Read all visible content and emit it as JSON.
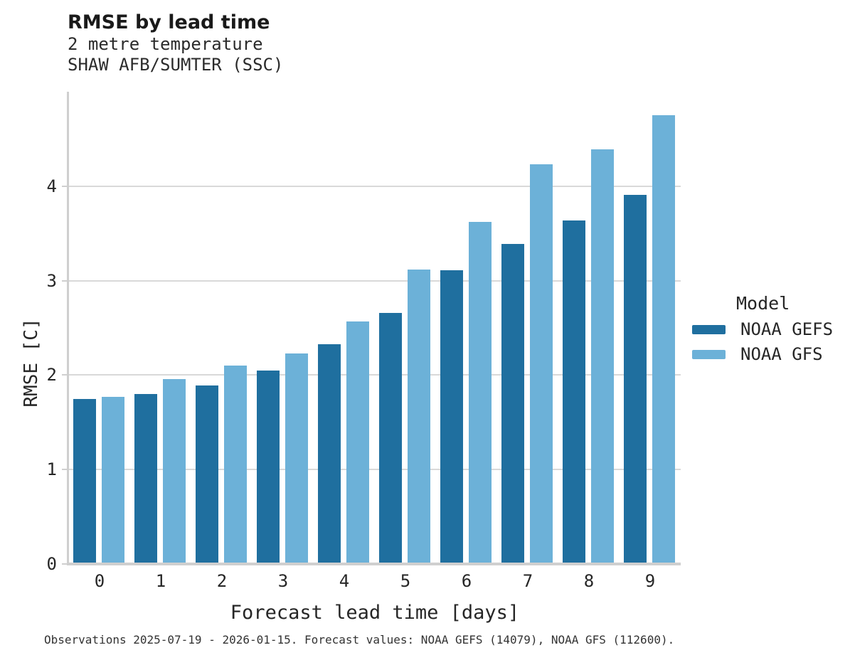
{
  "header": {
    "title": "RMSE by lead time",
    "subtitle_line1": "2 metre temperature",
    "subtitle_line2": "SHAW AFB/SUMTER (SSC)"
  },
  "chart_data": {
    "type": "bar",
    "title": "RMSE by lead time",
    "subtitle": [
      "2 metre temperature",
      "SHAW AFB/SUMTER (SSC)"
    ],
    "categories": [
      "0",
      "1",
      "2",
      "3",
      "4",
      "5",
      "6",
      "7",
      "8",
      "9"
    ],
    "series": [
      {
        "name": "NOAA GEFS",
        "color": "#1f6f9f",
        "values": [
          1.75,
          1.8,
          1.89,
          2.05,
          2.33,
          2.66,
          3.11,
          3.39,
          3.64,
          3.91
        ]
      },
      {
        "name": "NOAA GFS",
        "color": "#6cb1d8",
        "values": [
          1.77,
          1.96,
          2.1,
          2.23,
          2.57,
          3.12,
          3.62,
          4.23,
          4.39,
          4.75
        ]
      }
    ],
    "xlabel": "Forecast lead time [days]",
    "ylabel": "RMSE [C]",
    "ylim": [
      0,
      5
    ],
    "yticks": [
      "0",
      "1",
      "2",
      "3",
      "4"
    ],
    "grid": "horizontal",
    "legend_position": "right",
    "legend_title": "Model"
  },
  "legend": {
    "title": "Model",
    "entries": [
      {
        "label": "NOAA GEFS",
        "color": "#1f6f9f"
      },
      {
        "label": "NOAA GFS",
        "color": "#6cb1d8"
      }
    ]
  },
  "caption": "Observations 2025-07-19 - 2026-01-15. Forecast values: NOAA GEFS (14079), NOAA GFS (112600).",
  "colors": {
    "gefs": "#1f6f9f",
    "gfs": "#6cb1d8",
    "gridline": "#d9d9d9",
    "axis": "#cfcfcf",
    "title_text": "#1a1a1a",
    "body_text": "#262626"
  }
}
